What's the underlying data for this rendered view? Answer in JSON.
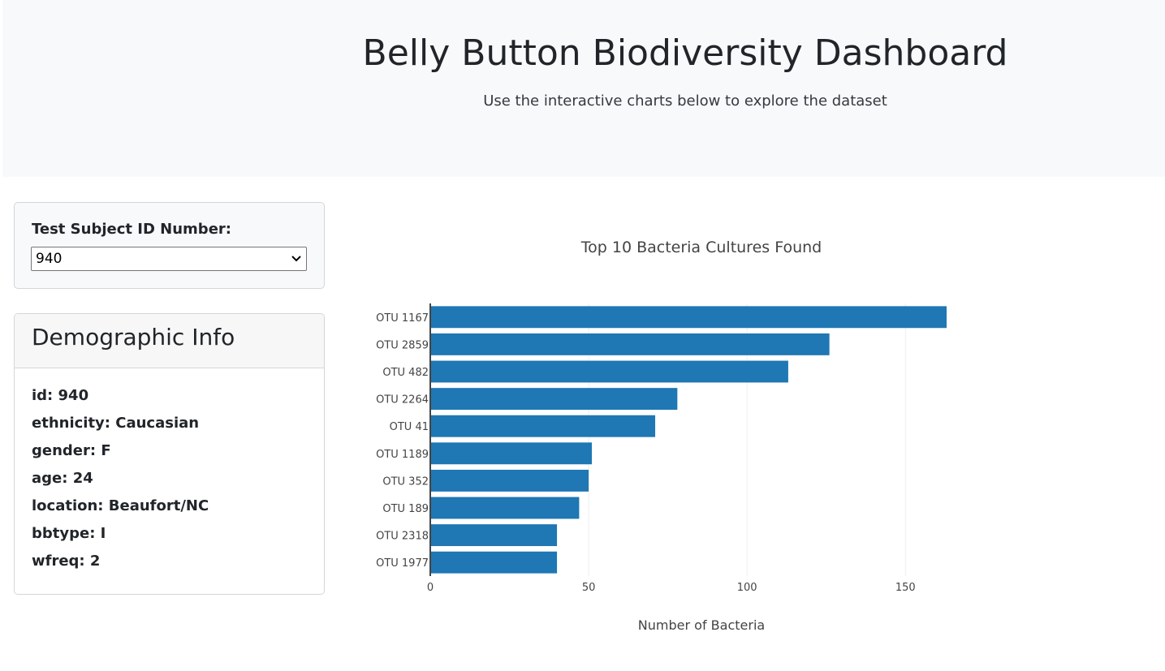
{
  "header": {
    "title": "Belly Button Biodiversity Dashboard",
    "subtitle": "Use the interactive charts below to explore the dataset"
  },
  "selector": {
    "label": "Test Subject ID Number:",
    "selected_value": "940"
  },
  "demographics": {
    "title": "Demographic Info",
    "items": [
      "id: 940",
      "ethnicity: Caucasian",
      "gender: F",
      "age: 24",
      "location: Beaufort/NC",
      "bbtype: I",
      "wfreq: 2"
    ]
  },
  "colors": {
    "bar": "#1f77b4",
    "jumbotron_bg": "#f8f9fa"
  },
  "chart_data": {
    "type": "bar",
    "orientation": "horizontal",
    "title": "Top 10 Bacteria Cultures Found",
    "xlabel": "Number of Bacteria",
    "ylabel": "",
    "xlim": [
      0,
      163
    ],
    "xticks": [
      0,
      50,
      100,
      150
    ],
    "grid": true,
    "categories": [
      "OTU 1167",
      "OTU 2859",
      "OTU 482",
      "OTU 2264",
      "OTU 41",
      "OTU 1189",
      "OTU 352",
      "OTU 189",
      "OTU 2318",
      "OTU 1977"
    ],
    "values": [
      163,
      126,
      113,
      78,
      71,
      51,
      50,
      47,
      40,
      40
    ]
  }
}
